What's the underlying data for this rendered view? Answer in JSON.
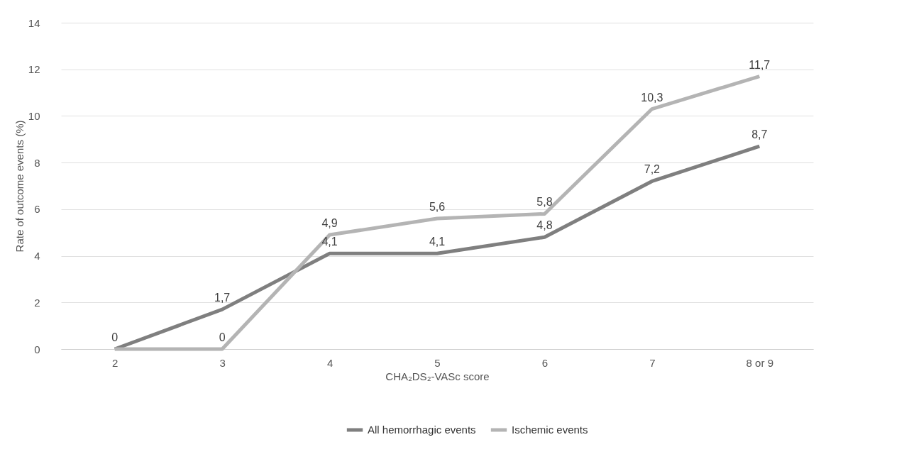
{
  "chart_data": {
    "type": "line",
    "xlabel": "CHA₂DS₂-VASc score",
    "ylabel": "Rate of outcome events (%)",
    "categories": [
      "2",
      "3",
      "4",
      "5",
      "6",
      "7",
      "8 or 9"
    ],
    "series": [
      {
        "name": "All hemorrhagic events",
        "color": "#7f7f7f",
        "values": [
          0,
          1.7,
          4.1,
          4.1,
          4.8,
          7.2,
          8.7
        ],
        "value_labels": [
          "0",
          "1,7",
          "4,1",
          "4,1",
          "4,8",
          "7,2",
          "8,7"
        ]
      },
      {
        "name": "Ischemic events",
        "color": "#b4b4b4",
        "values": [
          0,
          0,
          4.9,
          5.6,
          5.8,
          10.3,
          11.7
        ],
        "value_labels": [
          null,
          "0",
          "4,9",
          "5,6",
          "5,8",
          "10,3",
          "11,7"
        ]
      }
    ],
    "ylim": [
      0,
      14
    ],
    "yticks": [
      0,
      2,
      4,
      6,
      8,
      10,
      12,
      14
    ],
    "grid": "y",
    "legend": "bottom",
    "marker": "none",
    "line_style": "solid"
  }
}
